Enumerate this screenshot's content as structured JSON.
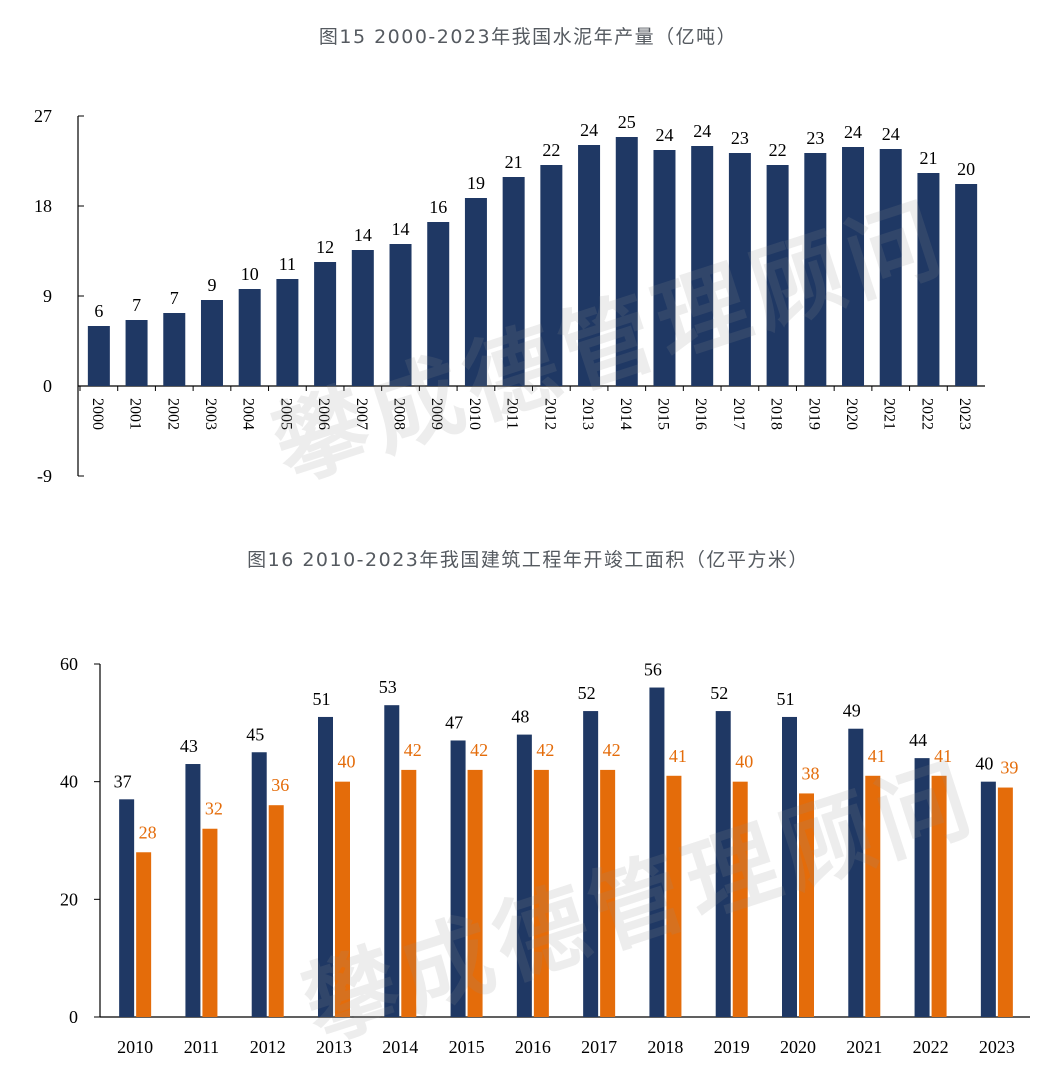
{
  "captions": {
    "chart1": "图15 2000-2023年我国水泥年产量（亿吨）",
    "chart2": "图16 2010-2023年我国建筑工程年开竣工面积（亿平方米）"
  },
  "watermark": "攀成德管理顾问",
  "colors": {
    "navy": "#1f3864",
    "orange": "#e46c0a",
    "axis": "#000000"
  },
  "chart_data": [
    {
      "type": "bar",
      "title": "图15 2000-2023年我国水泥年产量（亿吨）",
      "categories": [
        "2000",
        "2001",
        "2002",
        "2003",
        "2004",
        "2005",
        "2006",
        "2007",
        "2008",
        "2009",
        "2010",
        "2011",
        "2012",
        "2013",
        "2014",
        "2015",
        "2016",
        "2017",
        "2018",
        "2019",
        "2020",
        "2021",
        "2022",
        "2023"
      ],
      "series": [
        {
          "values": [
            6.0,
            6.6,
            7.3,
            8.6,
            9.7,
            10.7,
            12.4,
            13.6,
            14.2,
            16.4,
            18.8,
            20.9,
            22.1,
            24.1,
            24.9,
            23.6,
            24.0,
            23.3,
            22.1,
            23.3,
            23.9,
            23.7,
            21.3,
            20.2
          ],
          "labels": [
            "6",
            "7",
            "7",
            "9",
            "10",
            "11",
            "12",
            "14",
            "14",
            "16",
            "19",
            "21",
            "22",
            "24",
            "25",
            "24",
            "24",
            "23",
            "22",
            "23",
            "24",
            "24",
            "21",
            "20"
          ],
          "color": "#1f3864"
        }
      ],
      "ylim": [
        -9,
        27
      ],
      "yticks": [
        "27",
        "18",
        "9",
        "0",
        "-9"
      ],
      "ytick_values": [
        27,
        18,
        9,
        0,
        -9
      ],
      "xlabel": "",
      "ylabel": "",
      "grid": false,
      "x_tick_orientation": "vertical"
    },
    {
      "type": "bar",
      "title": "图16 2010-2023年我国建筑工程年开竣工面积（亿平方米）",
      "categories": [
        "2010",
        "2011",
        "2012",
        "2013",
        "2014",
        "2015",
        "2016",
        "2017",
        "2018",
        "2019",
        "2020",
        "2021",
        "2022",
        "2023"
      ],
      "series": [
        {
          "values": [
            37,
            43,
            45,
            51,
            53,
            47,
            48,
            52,
            56,
            52,
            51,
            49,
            44,
            40
          ],
          "labels": [
            "37",
            "43",
            "45",
            "51",
            "53",
            "47",
            "48",
            "52",
            "56",
            "52",
            "51",
            "49",
            "44",
            "40"
          ],
          "color": "#1f3864"
        },
        {
          "values": [
            28,
            32,
            36,
            40,
            42,
            42,
            42,
            42,
            41,
            40,
            38,
            41,
            41,
            39
          ],
          "labels": [
            "28",
            "32",
            "36",
            "40",
            "42",
            "42",
            "42",
            "42",
            "41",
            "40",
            "38",
            "41",
            "41",
            "39"
          ],
          "color": "#e46c0a"
        }
      ],
      "ylim": [
        0,
        60
      ],
      "yticks": [
        "60",
        "40",
        "20",
        "0"
      ],
      "ytick_values": [
        60,
        40,
        20,
        0
      ],
      "xlabel": "",
      "ylabel": "",
      "grid": false
    }
  ]
}
